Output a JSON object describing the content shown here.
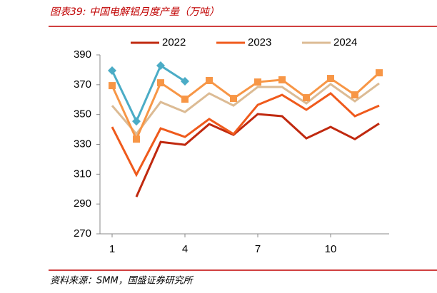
{
  "chart_data": {
    "type": "line",
    "title": "图表39:  中国电解铝月度产量（万吨）",
    "source": "资料来源：SMM，国盛证券研究所",
    "x": [
      1,
      2,
      3,
      4,
      5,
      6,
      7,
      8,
      9,
      10,
      11,
      12
    ],
    "xlim": [
      0.5,
      12.5
    ],
    "xticks": [
      1,
      4,
      7,
      10
    ],
    "ylim": [
      270,
      390
    ],
    "yticks": [
      270,
      290,
      310,
      330,
      350,
      370,
      390
    ],
    "series": [
      {
        "name": "2022",
        "color": "#c0290f",
        "values": [
          null,
          294.8,
          331.6,
          329.7,
          343.6,
          336.4,
          350.3,
          348.9,
          334,
          341.7,
          333.5,
          344
        ]
      },
      {
        "name": "2023",
        "color": "#ef5a1c",
        "values": [
          341.7,
          309.6,
          340.7,
          335,
          347,
          336.9,
          356.5,
          363.2,
          353.2,
          364.2,
          348.9,
          356
        ]
      },
      {
        "name": "2024",
        "color": "#dcbb94",
        "values": [
          356,
          337,
          358.4,
          351.7,
          364.2,
          356,
          368.5,
          368.5,
          357.5,
          370.4,
          358.9,
          370.9
        ]
      },
      {
        "color": "#f79646",
        "marker": "square",
        "values": [
          369.4,
          333.5,
          371.3,
          360.3,
          372.8,
          360.8,
          371.8,
          373.3,
          361.3,
          374.2,
          363.2,
          378
        ]
      },
      {
        "color": "#4bacc6",
        "marker": "diamond",
        "values": [
          379.5,
          345.5,
          382.8,
          372.3,
          null,
          null,
          null,
          null,
          null,
          null,
          null,
          null
        ]
      }
    ]
  }
}
